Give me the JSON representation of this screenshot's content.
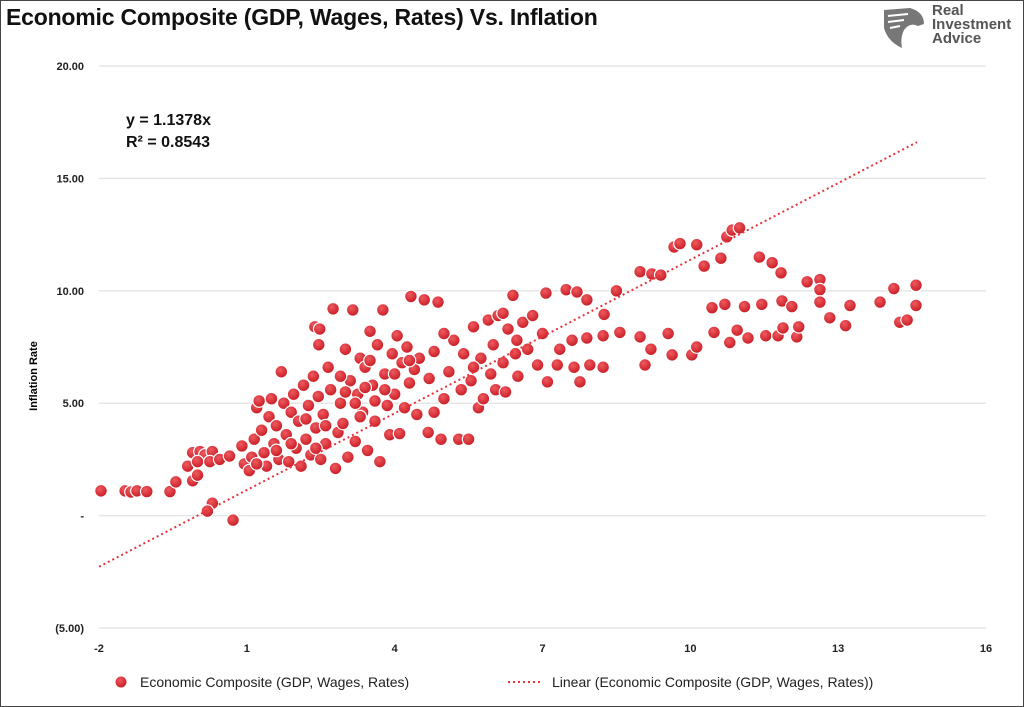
{
  "chart_data": {
    "type": "scatter",
    "title": "Economic Composite (GDP, Wages, Rates) Vs. Inflation",
    "xlabel": "",
    "ylabel": "Inflation Rate",
    "xlim": [
      -2,
      16
    ],
    "ylim": [
      -5,
      20
    ],
    "x_ticks": [
      -2,
      1,
      4,
      7,
      10,
      13,
      16
    ],
    "x_tick_labels": [
      "-2",
      "1",
      "4",
      "7",
      "10",
      "13",
      "16"
    ],
    "y_ticks": [
      20,
      15,
      10,
      5,
      0,
      -5
    ],
    "y_tick_labels": [
      "20.00",
      "15.00",
      "10.00",
      "5.00",
      "-",
      "(5.00)"
    ],
    "grid": true,
    "legend_position": "bottom",
    "series_name": "Economic Composite (GDP, Wages, Rates)",
    "trendline": {
      "name": "Linear (Economic Composite (GDP, Wages, Rates))",
      "slope": 1.1378,
      "x_range": [
        -2,
        14.6
      ],
      "equation": "y = 1.1378x",
      "r2": "R² = 0.8543"
    },
    "colors": {
      "points": "#d9262e",
      "trend": "#e8333a"
    },
    "points": [
      [
        -1.96,
        1.1
      ],
      [
        -1.47,
        1.1
      ],
      [
        -1.35,
        1.05
      ],
      [
        -1.23,
        1.1
      ],
      [
        -1.03,
        1.07
      ],
      [
        -0.56,
        1.07
      ],
      [
        -0.44,
        1.5
      ],
      [
        -0.2,
        2.2
      ],
      [
        -0.1,
        2.8
      ],
      [
        0.05,
        2.85
      ],
      [
        0.15,
        2.7
      ],
      [
        0.3,
        2.85
      ],
      [
        0,
        2.4
      ],
      [
        0.25,
        2.4
      ],
      [
        0.45,
        2.5
      ],
      [
        0.65,
        2.65
      ],
      [
        -0.1,
        1.55
      ],
      [
        0,
        1.8
      ],
      [
        0.3,
        0.55
      ],
      [
        0.2,
        0.2
      ],
      [
        0.72,
        -0.2
      ],
      [
        0.9,
        3.1
      ],
      [
        0.95,
        2.3
      ],
      [
        1.05,
        2.0
      ],
      [
        1.1,
        2.6
      ],
      [
        1.15,
        3.4
      ],
      [
        1.2,
        4.8
      ],
      [
        1.25,
        5.1
      ],
      [
        1.3,
        3.8
      ],
      [
        1.35,
        2.8
      ],
      [
        1.4,
        2.2
      ],
      [
        1.45,
        4.4
      ],
      [
        1.5,
        5.2
      ],
      [
        1.55,
        3.2
      ],
      [
        1.6,
        4.0
      ],
      [
        1.65,
        2.5
      ],
      [
        1.7,
        6.4
      ],
      [
        1.75,
        5.0
      ],
      [
        1.8,
        3.6
      ],
      [
        1.85,
        2.4
      ],
      [
        1.9,
        4.6
      ],
      [
        1.95,
        5.4
      ],
      [
        2.0,
        3.0
      ],
      [
        2.05,
        4.2
      ],
      [
        2.1,
        2.2
      ],
      [
        2.15,
        5.8
      ],
      [
        2.2,
        3.4
      ],
      [
        2.25,
        4.9
      ],
      [
        2.3,
        2.7
      ],
      [
        2.35,
        6.2
      ],
      [
        2.38,
        8.4
      ],
      [
        2.48,
        8.3
      ],
      [
        2.46,
        7.6
      ],
      [
        2.4,
        3.9
      ],
      [
        2.45,
        5.3
      ],
      [
        2.5,
        2.5
      ],
      [
        2.55,
        4.5
      ],
      [
        2.6,
        3.2
      ],
      [
        2.65,
        6.6
      ],
      [
        2.7,
        5.6
      ],
      [
        2.75,
        9.2
      ],
      [
        2.8,
        2.1
      ],
      [
        2.85,
        3.7
      ],
      [
        2.9,
        5.0
      ],
      [
        2.95,
        4.1
      ],
      [
        3.0,
        7.4
      ],
      [
        3.05,
        2.6
      ],
      [
        3.1,
        6.0
      ],
      [
        3.15,
        9.15
      ],
      [
        3.2,
        3.3
      ],
      [
        3.25,
        5.4
      ],
      [
        3.3,
        7.0
      ],
      [
        3.35,
        4.6
      ],
      [
        3.4,
        6.6
      ],
      [
        3.45,
        2.9
      ],
      [
        3.5,
        8.2
      ],
      [
        3.55,
        5.8
      ],
      [
        3.6,
        4.2
      ],
      [
        3.65,
        7.6
      ],
      [
        3.7,
        2.4
      ],
      [
        3.76,
        9.15
      ],
      [
        3.8,
        6.3
      ],
      [
        3.85,
        4.9
      ],
      [
        3.9,
        3.6
      ],
      [
        3.95,
        7.2
      ],
      [
        4.0,
        5.4
      ],
      [
        4.05,
        8.0
      ],
      [
        4.1,
        3.65
      ],
      [
        4.15,
        6.8
      ],
      [
        4.2,
        4.8
      ],
      [
        4.25,
        7.5
      ],
      [
        4.3,
        5.9
      ],
      [
        4.33,
        9.75
      ],
      [
        4.4,
        6.5
      ],
      [
        4.45,
        4.5
      ],
      [
        4.5,
        7.0
      ],
      [
        4.6,
        9.6
      ],
      [
        4.68,
        3.7
      ],
      [
        4.7,
        6.1
      ],
      [
        4.8,
        7.3
      ],
      [
        4.88,
        9.5
      ],
      [
        4.94,
        3.4
      ],
      [
        5.0,
        5.2
      ],
      [
        3.0,
        5.5
      ],
      [
        3.2,
        5.0
      ],
      [
        3.4,
        5.7
      ],
      [
        3.6,
        5.1
      ],
      [
        2.2,
        4.3
      ],
      [
        2.6,
        4.0
      ],
      [
        1.9,
        3.2
      ],
      [
        2.4,
        3.0
      ],
      [
        3.3,
        4.4
      ],
      [
        3.8,
        5.6
      ],
      [
        4.0,
        6.3
      ],
      [
        4.3,
        6.9
      ],
      [
        3.5,
        6.9
      ],
      [
        2.9,
        6.2
      ],
      [
        1.6,
        2.9
      ],
      [
        1.2,
        2.3
      ],
      [
        5.1,
        6.4
      ],
      [
        5.2,
        7.8
      ],
      [
        5.3,
        3.4
      ],
      [
        5.35,
        5.6
      ],
      [
        5.4,
        7.2
      ],
      [
        5.5,
        3.4
      ],
      [
        5.55,
        6.0
      ],
      [
        5.6,
        8.4
      ],
      [
        5.7,
        4.8
      ],
      [
        5.75,
        7.0
      ],
      [
        5.8,
        5.2
      ],
      [
        5.9,
        8.7
      ],
      [
        5.95,
        6.3
      ],
      [
        6.0,
        7.6
      ],
      [
        6.05,
        5.6
      ],
      [
        6.1,
        8.9
      ],
      [
        6.2,
        6.8
      ],
      [
        6.25,
        5.5
      ],
      [
        6.3,
        8.3
      ],
      [
        6.4,
        9.8
      ],
      [
        6.45,
        7.2
      ],
      [
        6.48,
        7.8
      ],
      [
        6.5,
        6.2
      ],
      [
        6.6,
        8.6
      ],
      [
        6.7,
        7.4
      ],
      [
        6.8,
        8.9
      ],
      [
        6.9,
        6.7
      ],
      [
        7.0,
        8.1
      ],
      [
        5.0,
        8.1
      ],
      [
        4.8,
        4.6
      ],
      [
        5.6,
        6.6
      ],
      [
        6.2,
        9.0
      ],
      [
        7.07,
        9.9
      ],
      [
        7.48,
        10.05
      ],
      [
        7.7,
        9.95
      ],
      [
        7.9,
        9.6
      ],
      [
        8.5,
        10.0
      ],
      [
        8.98,
        10.85
      ],
      [
        9.22,
        10.75
      ],
      [
        9.4,
        10.7
      ],
      [
        9.67,
        11.95
      ],
      [
        9.79,
        12.1
      ],
      [
        10.13,
        12.05
      ],
      [
        10.28,
        11.1
      ],
      [
        10.62,
        11.45
      ],
      [
        10.74,
        12.4
      ],
      [
        10.85,
        12.7
      ],
      [
        11.0,
        12.8
      ],
      [
        11.4,
        11.5
      ],
      [
        11.66,
        11.25
      ],
      [
        11.84,
        10.8
      ],
      [
        11.86,
        9.55
      ],
      [
        12.37,
        10.4
      ],
      [
        12.63,
        10.5
      ],
      [
        12.63,
        10.05
      ],
      [
        12.63,
        9.5
      ],
      [
        12.83,
        8.8
      ],
      [
        13.24,
        9.35
      ],
      [
        13.85,
        9.5
      ],
      [
        14.13,
        10.1
      ],
      [
        14.25,
        8.6
      ],
      [
        14.4,
        8.7
      ],
      [
        14.58,
        9.35
      ],
      [
        14.58,
        10.25
      ],
      [
        13.15,
        8.45
      ],
      [
        7.1,
        5.95
      ],
      [
        7.76,
        5.95
      ],
      [
        7.3,
        6.7
      ],
      [
        7.64,
        6.6
      ],
      [
        7.96,
        6.7
      ],
      [
        8.23,
        6.6
      ],
      [
        8.23,
        8.0
      ],
      [
        8.57,
        8.15
      ],
      [
        8.98,
        7.95
      ],
      [
        9.08,
        6.7
      ],
      [
        9.2,
        7.4
      ],
      [
        9.55,
        8.1
      ],
      [
        9.63,
        7.15
      ],
      [
        10.03,
        7.15
      ],
      [
        10.13,
        7.5
      ],
      [
        10.48,
        8.15
      ],
      [
        10.44,
        9.25
      ],
      [
        10.7,
        9.4
      ],
      [
        10.8,
        7.7
      ],
      [
        10.95,
        8.25
      ],
      [
        11.1,
        9.3
      ],
      [
        11.17,
        7.9
      ],
      [
        11.45,
        9.4
      ],
      [
        11.53,
        8.0
      ],
      [
        11.78,
        8.0
      ],
      [
        11.88,
        8.35
      ],
      [
        12.06,
        9.3
      ],
      [
        12.16,
        7.95
      ],
      [
        12.2,
        8.4
      ],
      [
        7.35,
        7.4
      ],
      [
        7.6,
        7.8
      ],
      [
        7.9,
        7.9
      ],
      [
        8.25,
        8.95
      ]
    ]
  },
  "logo": {
    "line1": "Real",
    "line2": "Investment",
    "line3": "Advice"
  }
}
